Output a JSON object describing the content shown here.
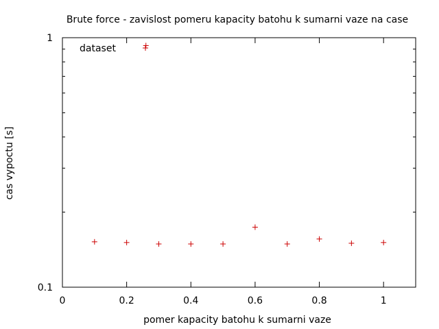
{
  "chart_data": {
    "type": "scatter",
    "title": "Brute force - zavislost pomeru kapacity batohu k sumarni vaze na case",
    "xlabel": "pomer kapacity batohu k sumarni vaze",
    "ylabel": "cas vypoctu [s]",
    "xlim": [
      0,
      1.1
    ],
    "ylim": [
      0.1,
      1
    ],
    "yscale": "log",
    "x_ticks": [
      {
        "value": 0,
        "label": "0"
      },
      {
        "value": 0.2,
        "label": "0.2"
      },
      {
        "value": 0.4,
        "label": "0.4"
      },
      {
        "value": 0.6,
        "label": "0.6"
      },
      {
        "value": 0.8,
        "label": "0.8"
      },
      {
        "value": 1,
        "label": "1"
      }
    ],
    "y_ticks": [
      {
        "value": 0.1,
        "label": "0.1"
      },
      {
        "value": 1,
        "label": "1"
      }
    ],
    "grid": false,
    "legend": "top-left",
    "series": [
      {
        "name": "dataset",
        "color": "#cc0000",
        "marker": "+",
        "x": [
          0.1,
          0.2,
          0.26,
          0.3,
          0.4,
          0.5,
          0.6,
          0.7,
          0.8,
          0.9,
          1.0
        ],
        "y": [
          0.152,
          0.151,
          0.93,
          0.149,
          0.149,
          0.149,
          0.174,
          0.149,
          0.156,
          0.15,
          0.151
        ]
      }
    ]
  }
}
